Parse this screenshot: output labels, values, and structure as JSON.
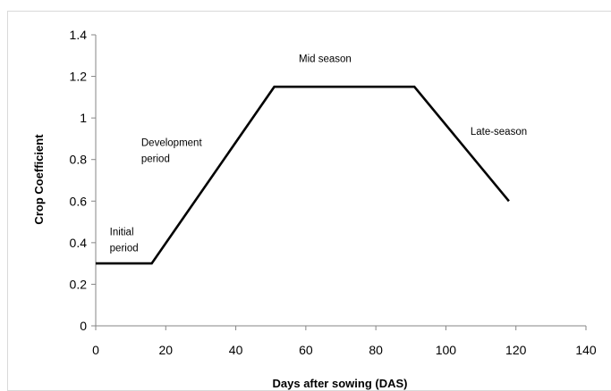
{
  "chart_data": {
    "type": "line",
    "title": "",
    "xlabel": "Days after sowing (DAS)",
    "ylabel": "Crop  Coefficient",
    "xlim": [
      0,
      140
    ],
    "ylim": [
      0,
      1.4
    ],
    "x_ticks": [
      "0",
      "20",
      "40",
      "60",
      "80",
      "100",
      "120",
      "140"
    ],
    "y_ticks": [
      "0",
      "0.2",
      "0.4",
      "0.6",
      "0.8",
      "1",
      "1.2",
      "1.4"
    ],
    "grid": false,
    "legend": "none",
    "series": [
      {
        "x": [
          0,
          16,
          51,
          91,
          118
        ],
        "y": [
          0.3,
          0.3,
          1.15,
          1.15,
          0.6
        ]
      }
    ],
    "annotations": [
      {
        "lines": [
          "Initial",
          "period"
        ],
        "x": 4,
        "y": 0.435
      },
      {
        "lines": [
          "Development",
          "period"
        ],
        "x": 13,
        "y": 0.865
      },
      {
        "lines": [
          "Mid season"
        ],
        "x": 58,
        "y": 1.27
      },
      {
        "lines": [
          "Late-season"
        ],
        "x": 107,
        "y": 0.92
      }
    ],
    "colors": {
      "line": "#000000",
      "axis": "#868686",
      "frame": "#d9d9d9"
    }
  }
}
